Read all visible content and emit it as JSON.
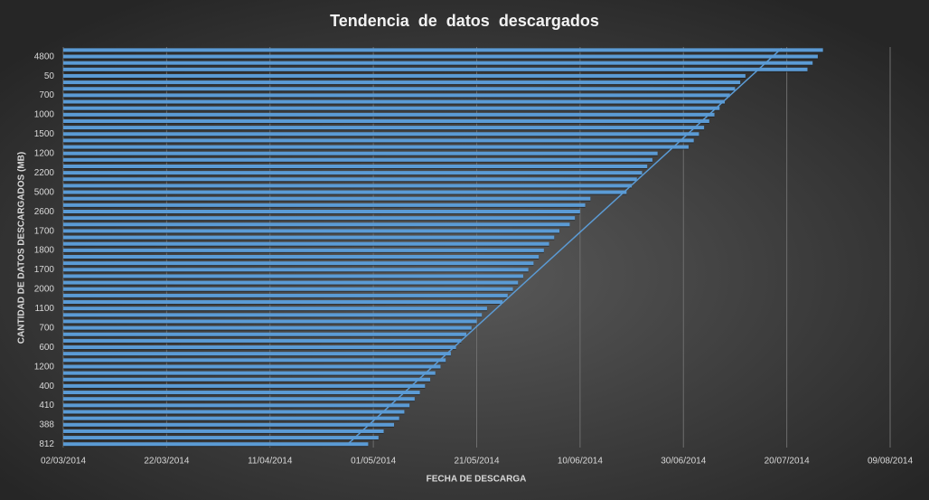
{
  "chart_data": {
    "type": "bar",
    "orientation": "horizontal",
    "title": "Tendencia  de  datos  descargados",
    "xlabel": "FECHA DE DESCARGA",
    "ylabel": "CANTIDAD DE DATOS DESCARGADOS (MB)",
    "color": "#5b9bd5",
    "grid": true,
    "categories": [
      null,
      "4800",
      null,
      null,
      "50",
      null,
      null,
      "700",
      null,
      null,
      "1000",
      null,
      null,
      "1500",
      null,
      null,
      "1200",
      null,
      null,
      "2200",
      null,
      null,
      "5000",
      null,
      null,
      "2600",
      null,
      null,
      "1700",
      null,
      null,
      "1800",
      null,
      null,
      "1700",
      null,
      null,
      "2000",
      null,
      null,
      "1100",
      null,
      null,
      "700",
      null,
      null,
      "600",
      null,
      null,
      "1200",
      null,
      null,
      "400",
      null,
      null,
      "410",
      null,
      null,
      "388",
      null,
      null,
      "812"
    ],
    "values": [
      41847,
      41846,
      41845,
      41844,
      41832,
      41831,
      41830,
      41829,
      41828,
      41827,
      41826,
      41825,
      41824,
      41823,
      41822,
      41821,
      41815,
      41814,
      41813,
      41812,
      41811,
      41810,
      41809,
      41802,
      41801,
      41800,
      41799,
      41798,
      41796,
      41795,
      41794,
      41793,
      41792,
      41791,
      41790,
      41789,
      41788,
      41787,
      41786,
      41785,
      41782,
      41781,
      41780,
      41779,
      41778,
      41777,
      41776,
      41775,
      41774,
      41773,
      41772,
      41771,
      41770,
      41769,
      41768,
      41767,
      41766,
      41765,
      41764,
      41762,
      41761,
      41759
    ],
    "trendline": {
      "start": 41755,
      "end": 41839
    },
    "xlim": [
      41700,
      41860
    ],
    "xticks": [
      {
        "value": 41700,
        "label": "02/03/2014"
      },
      {
        "value": 41720,
        "label": "22/03/2014"
      },
      {
        "value": 41740,
        "label": "11/04/2014"
      },
      {
        "value": 41760,
        "label": "01/05/2014"
      },
      {
        "value": 41780,
        "label": "21/05/2014"
      },
      {
        "value": 41800,
        "label": "10/06/2014"
      },
      {
        "value": 41820,
        "label": "30/06/2014"
      },
      {
        "value": 41840,
        "label": "20/07/2014"
      },
      {
        "value": 41860,
        "label": "09/08/2014"
      }
    ]
  }
}
